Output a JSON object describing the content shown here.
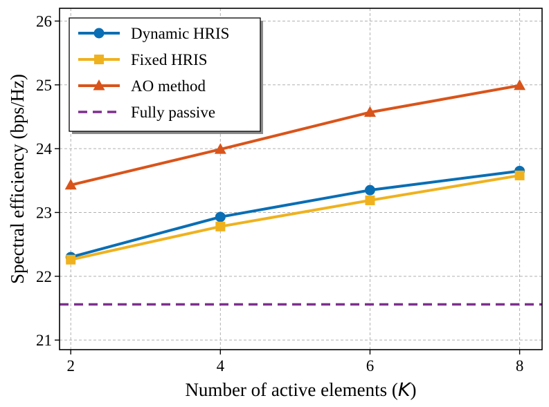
{
  "chart_data": {
    "type": "line",
    "title": "",
    "xlabel": "Number of active elements (",
    "xlabel_var": "K",
    "xlabel_close": ")",
    "ylabel": "Spectral efficiency (bps/Hz)",
    "x": [
      2,
      4,
      6,
      8
    ],
    "xlim": [
      1.85,
      8.3
    ],
    "ylim": [
      20.85,
      26.2
    ],
    "xticks": [
      2,
      4,
      6,
      8
    ],
    "yticks": [
      21,
      22,
      23,
      24,
      25,
      26
    ],
    "grid": true,
    "legend_position": "top-left",
    "series": [
      {
        "name": "Dynamic HRIS",
        "color": "#0a6eb4",
        "marker": "circle",
        "style": "solid",
        "values": [
          22.3,
          22.93,
          23.35,
          23.65
        ]
      },
      {
        "name": "Fixed HRIS",
        "color": "#efb21e",
        "marker": "square",
        "style": "solid",
        "values": [
          22.26,
          22.78,
          23.19,
          23.58
        ]
      },
      {
        "name": "AO method",
        "color": "#d9541a",
        "marker": "triangle",
        "style": "solid",
        "values": [
          23.43,
          23.99,
          24.57,
          24.99
        ]
      },
      {
        "name": "Fully passive",
        "color": "#7e2f8e",
        "marker": "none",
        "style": "dashed",
        "values": [
          21.56,
          21.56,
          21.56,
          21.56
        ]
      }
    ]
  }
}
